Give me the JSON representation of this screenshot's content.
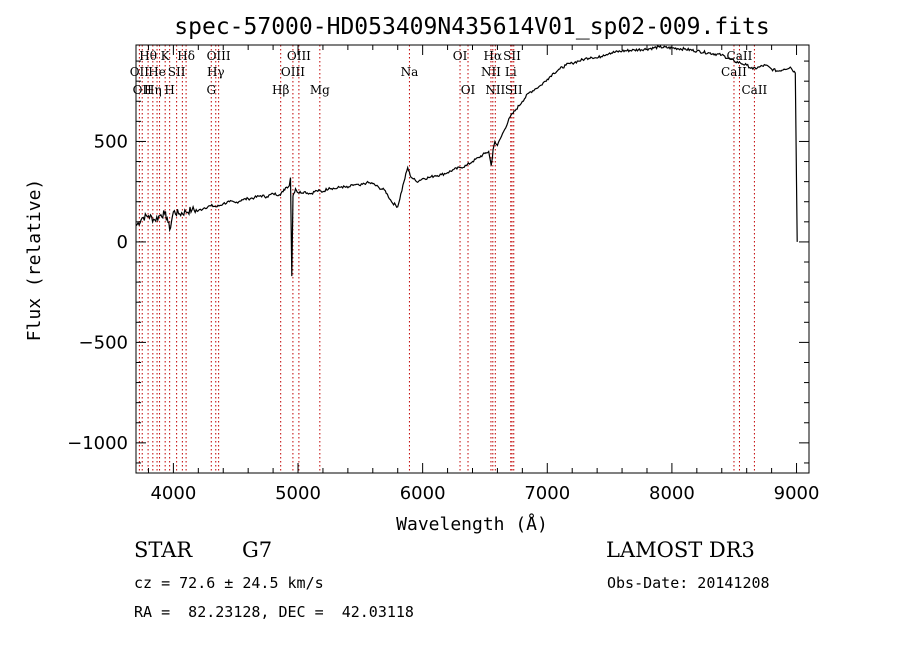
{
  "chart_data": {
    "type": "line",
    "title": "spec-57000-HD053409N435614V01_sp02-009.fits",
    "xlabel": "Wavelength (Å)",
    "ylabel": "Flux (relative)",
    "xlim": [
      3700,
      9100
    ],
    "ylim": [
      -1150,
      980
    ],
    "xticks": [
      4000,
      5000,
      6000,
      7000,
      8000,
      9000
    ],
    "yticks": [
      -1000,
      -500,
      0,
      500
    ],
    "series": [
      {
        "name": "flux",
        "x": [
          3700,
          3750,
          3800,
          3850,
          3900,
          3930,
          3950,
          3970,
          4000,
          4050,
          4100,
          4150,
          4200,
          4250,
          4300,
          4350,
          4400,
          4450,
          4500,
          4550,
          4600,
          4650,
          4700,
          4750,
          4800,
          4850,
          4880,
          4900,
          4930,
          4940,
          4950,
          4960,
          4980,
          5000,
          5050,
          5100,
          5150,
          5200,
          5250,
          5300,
          5350,
          5400,
          5450,
          5500,
          5550,
          5600,
          5650,
          5700,
          5750,
          5800,
          5850,
          5880,
          5900,
          5950,
          6000,
          6050,
          6100,
          6150,
          6200,
          6250,
          6300,
          6350,
          6400,
          6450,
          6500,
          6530,
          6550,
          6560,
          6565,
          6580,
          6600,
          6650,
          6700,
          6750,
          6800,
          6850,
          6900,
          6950,
          7000,
          7050,
          7100,
          7150,
          7200,
          7250,
          7300,
          7350,
          7400,
          7450,
          7500,
          7600,
          7700,
          7800,
          7900,
          8000,
          8100,
          8200,
          8300,
          8400,
          8500,
          8550,
          8600,
          8650,
          8700,
          8750,
          8800,
          8850,
          8900,
          8950,
          8990,
          9000,
          9005
        ],
        "y": [
          80,
          120,
          130,
          110,
          135,
          140,
          120,
          60,
          150,
          140,
          150,
          160,
          155,
          170,
          180,
          175,
          190,
          200,
          195,
          210,
          215,
          220,
          230,
          225,
          240,
          235,
          250,
          270,
          280,
          320,
          -170,
          230,
          265,
          245,
          250,
          240,
          255,
          250,
          270,
          265,
          275,
          270,
          285,
          280,
          295,
          290,
          270,
          255,
          200,
          175,
          300,
          370,
          330,
          300,
          315,
          320,
          330,
          335,
          345,
          360,
          370,
          380,
          400,
          420,
          440,
          450,
          380,
          420,
          460,
          500,
          480,
          550,
          620,
          660,
          700,
          740,
          760,
          780,
          810,
          840,
          860,
          880,
          890,
          900,
          910,
          920,
          915,
          930,
          940,
          950,
          955,
          960,
          970,
          965,
          960,
          950,
          940,
          930,
          900,
          890,
          880,
          860,
          870,
          880,
          860,
          850,
          860,
          870,
          840,
          300,
          0
        ]
      }
    ],
    "lines": [
      {
        "w": 3727,
        "label": "OII",
        "row": 1
      },
      {
        "w": 3750,
        "label": "OII",
        "row": 2
      },
      {
        "w": 3797,
        "label": "Hθ",
        "row": 0
      },
      {
        "w": 3835,
        "label": "Hη",
        "row": 2
      },
      {
        "w": 3869,
        "label": "He",
        "row": 1
      },
      {
        "w": 3889,
        "label": "",
        "row": -1
      },
      {
        "w": 3934,
        "label": "K",
        "row": 0
      },
      {
        "w": 3970,
        "label": "H",
        "row": 2
      },
      {
        "w": 4026,
        "label": "SII",
        "row": 1
      },
      {
        "w": 4072,
        "label": "",
        "row": -1
      },
      {
        "w": 4102,
        "label": "Hδ",
        "row": 0
      },
      {
        "w": 4304,
        "label": "G",
        "row": 2
      },
      {
        "w": 4340,
        "label": "Hγ",
        "row": 1
      },
      {
        "w": 4363,
        "label": "OIII",
        "row": 0
      },
      {
        "w": 4861,
        "label": "Hβ",
        "row": 2
      },
      {
        "w": 4959,
        "label": "OIII",
        "row": 1
      },
      {
        "w": 5007,
        "label": "OIII",
        "row": 0
      },
      {
        "w": 5175,
        "label": "Mg",
        "row": 2
      },
      {
        "w": 5894,
        "label": "Na",
        "row": 1
      },
      {
        "w": 6300,
        "label": "OI",
        "row": 0
      },
      {
        "w": 6364,
        "label": "OI",
        "row": 2
      },
      {
        "w": 6548,
        "label": "NII",
        "row": 1
      },
      {
        "w": 6563,
        "label": "Hα",
        "row": 0
      },
      {
        "w": 6583,
        "label": "NII",
        "row": 2
      },
      {
        "w": 6707,
        "label": "Li",
        "row": 1
      },
      {
        "w": 6717,
        "label": "SII",
        "row": 0
      },
      {
        "w": 6731,
        "label": "SII",
        "row": 2
      },
      {
        "w": 8498,
        "label": "CaII",
        "row": 1
      },
      {
        "w": 8542,
        "label": "CaII",
        "row": 0
      },
      {
        "w": 8662,
        "label": "CaII",
        "row": 2
      }
    ]
  },
  "info": {
    "object_class": "STAR",
    "subclass": "G7",
    "survey": "LAMOST DR3",
    "cz": "cz = 72.6 ± 24.5 km/s",
    "obs_date": "Obs-Date: 20141208",
    "coords": "RA =  82.23128, DEC =  42.03118"
  }
}
